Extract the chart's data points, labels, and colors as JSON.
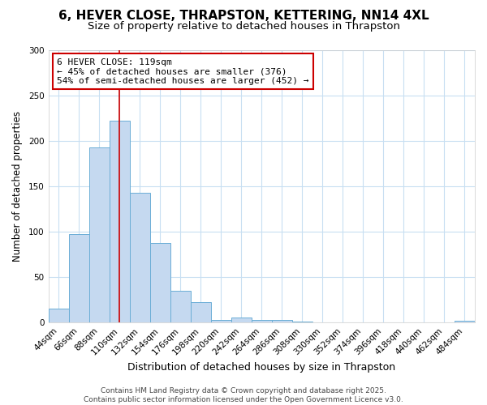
{
  "title1": "6, HEVER CLOSE, THRAPSTON, KETTERING, NN14 4XL",
  "title2": "Size of property relative to detached houses in Thrapston",
  "xlabel": "Distribution of detached houses by size in Thrapston",
  "ylabel": "Number of detached properties",
  "bin_labels": [
    "44sqm",
    "66sqm",
    "88sqm",
    "110sqm",
    "132sqm",
    "154sqm",
    "176sqm",
    "198sqm",
    "220sqm",
    "242sqm",
    "264sqm",
    "286sqm",
    "308sqm",
    "330sqm",
    "352sqm",
    "374sqm",
    "396sqm",
    "418sqm",
    "440sqm",
    "462sqm",
    "484sqm"
  ],
  "bar_values": [
    15,
    97,
    193,
    222,
    143,
    88,
    35,
    23,
    3,
    6,
    3,
    3,
    1,
    0,
    0,
    0,
    0,
    0,
    0,
    0,
    2
  ],
  "bar_color": "#c5d9f0",
  "bar_edge_color": "#6baed6",
  "vline_x": 3.0,
  "vline_color": "#cc0000",
  "annotation_text": "6 HEVER CLOSE: 119sqm\n← 45% of detached houses are smaller (376)\n54% of semi-detached houses are larger (452) →",
  "annotation_box_color": "#ffffff",
  "annotation_box_edge": "#cc0000",
  "ylim": [
    0,
    300
  ],
  "yticks": [
    0,
    50,
    100,
    150,
    200,
    250,
    300
  ],
  "footnote": "Contains HM Land Registry data © Crown copyright and database right 2025.\nContains public sector information licensed under the Open Government Licence v3.0.",
  "bg_color": "#ffffff",
  "fig_bg_color": "#ffffff",
  "title1_fontsize": 11,
  "title2_fontsize": 9.5,
  "xlabel_fontsize": 9,
  "ylabel_fontsize": 8.5,
  "tick_fontsize": 7.5,
  "footnote_fontsize": 6.5,
  "annotation_fontsize": 8,
  "grid_color": "#c8dff2"
}
